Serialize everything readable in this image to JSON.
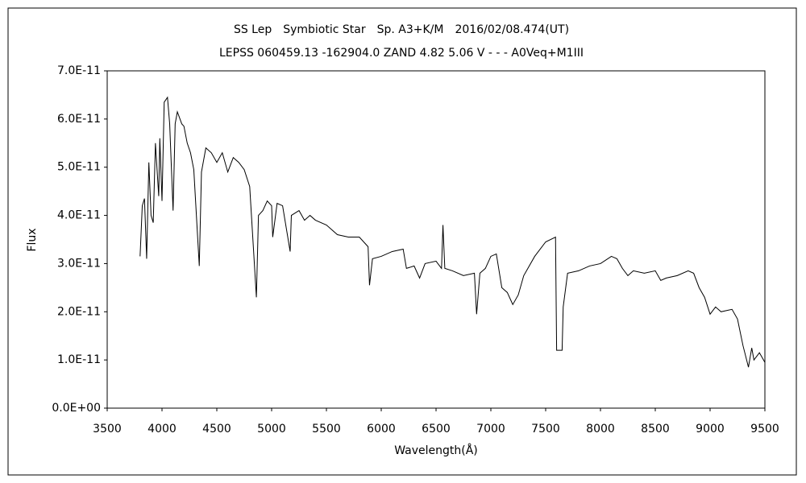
{
  "chart_data": {
    "type": "line",
    "title": "SS Lep　Symbiotic Star　Sp. A3+K/M　2016/02/08.474(UT)",
    "subtitle": "LEPSS 060459.13 -162904.0 ZAND 4.82 5.06 V - - - A0Veq+M1III",
    "x_label": "Wavelength(Å)",
    "y_label": "Flux",
    "xlim": [
      3500,
      9500
    ],
    "xticks": [
      3500,
      4000,
      4500,
      5000,
      5500,
      6000,
      6500,
      7000,
      7500,
      8000,
      8500,
      9000,
      9500
    ],
    "ylim": [
      0,
      7e-11
    ],
    "yticks": [
      {
        "value": 0,
        "label": "0.0E+00"
      },
      {
        "value": 1e-11,
        "label": "1.0E-11"
      },
      {
        "value": 2e-11,
        "label": "2.0E-11"
      },
      {
        "value": 3e-11,
        "label": "3.0E-11"
      },
      {
        "value": 4e-11,
        "label": "4.0E-11"
      },
      {
        "value": 5e-11,
        "label": "5.0E-11"
      },
      {
        "value": 6e-11,
        "label": "6.0E-11"
      },
      {
        "value": 7e-11,
        "label": "7.0E-11"
      }
    ],
    "x": [
      3800,
      3820,
      3840,
      3860,
      3880,
      3900,
      3920,
      3940,
      3970,
      3980,
      4000,
      4020,
      4050,
      4070,
      4101,
      4120,
      4140,
      4180,
      4200,
      4230,
      4260,
      4290,
      4340,
      4360,
      4400,
      4450,
      4500,
      4550,
      4600,
      4650,
      4700,
      4750,
      4800,
      4861,
      4880,
      4920,
      4960,
      5000,
      5010,
      5050,
      5100,
      5169,
      5180,
      5250,
      5300,
      5350,
      5400,
      5500,
      5600,
      5700,
      5800,
      5880,
      5893,
      5920,
      6000,
      6100,
      6200,
      6230,
      6300,
      6350,
      6400,
      6500,
      6550,
      6563,
      6580,
      6650,
      6750,
      6850,
      6870,
      6900,
      6950,
      7000,
      7050,
      7100,
      7150,
      7200,
      7250,
      7300,
      7400,
      7500,
      7590,
      7600,
      7650,
      7660,
      7700,
      7800,
      7900,
      8000,
      8100,
      8150,
      8200,
      8250,
      8300,
      8400,
      8500,
      8550,
      8600,
      8700,
      8800,
      8850,
      8900,
      8950,
      9000,
      9050,
      9100,
      9200,
      9250,
      9300,
      9350,
      9380,
      9400,
      9450,
      9500
    ],
    "series": [
      {
        "name": "SS Lep",
        "color": "#000000",
        "values": [
          3.15e-11,
          4.2e-11,
          4.35e-11,
          3.1e-11,
          5.1e-11,
          4e-11,
          3.85e-11,
          5.5e-11,
          4.4e-11,
          5.6e-11,
          4.3e-11,
          6.35e-11,
          6.45e-11,
          5.9e-11,
          4.1e-11,
          5.9e-11,
          6.15e-11,
          5.9e-11,
          5.85e-11,
          5.5e-11,
          5.3e-11,
          4.95e-11,
          2.95e-11,
          4.9e-11,
          5.4e-11,
          5.3e-11,
          5.1e-11,
          5.3e-11,
          4.9e-11,
          5.2e-11,
          5.1e-11,
          4.95e-11,
          4.6e-11,
          2.3e-11,
          4e-11,
          4.1e-11,
          4.3e-11,
          4.2e-11,
          3.55e-11,
          4.25e-11,
          4.2e-11,
          3.25e-11,
          4e-11,
          4.1e-11,
          3.9e-11,
          4e-11,
          3.9e-11,
          3.8e-11,
          3.6e-11,
          3.55e-11,
          3.55e-11,
          3.35e-11,
          2.55e-11,
          3.1e-11,
          3.15e-11,
          3.25e-11,
          3.3e-11,
          2.9e-11,
          2.95e-11,
          2.7e-11,
          3e-11,
          3.05e-11,
          2.9e-11,
          3.8e-11,
          2.9e-11,
          2.85e-11,
          2.75e-11,
          2.8e-11,
          1.95e-11,
          2.8e-11,
          2.9e-11,
          3.15e-11,
          3.2e-11,
          2.5e-11,
          2.4e-11,
          2.15e-11,
          2.35e-11,
          2.75e-11,
          3.15e-11,
          3.45e-11,
          3.55e-11,
          1.2e-11,
          1.2e-11,
          2.1e-11,
          2.8e-11,
          2.85e-11,
          2.95e-11,
          3e-11,
          3.15e-11,
          3.1e-11,
          2.9e-11,
          2.75e-11,
          2.85e-11,
          2.8e-11,
          2.85e-11,
          2.65e-11,
          2.7e-11,
          2.75e-11,
          2.85e-11,
          2.8e-11,
          2.5e-11,
          2.3e-11,
          1.95e-11,
          2.1e-11,
          2e-11,
          2.05e-11,
          1.85e-11,
          1.3e-11,
          8.5e-12,
          1.25e-11,
          1e-11,
          1.15e-11,
          9.5e-12
        ]
      }
    ]
  }
}
